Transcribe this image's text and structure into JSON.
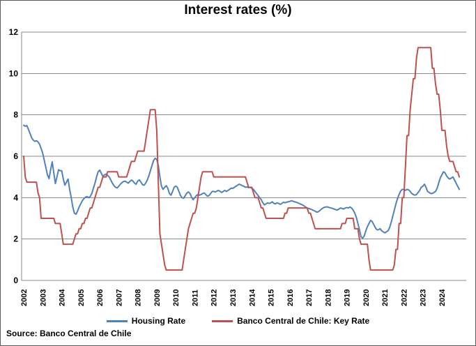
{
  "title": "Interest rates (%)",
  "source_note": "Source: Banco Central de Chile",
  "legend": {
    "items": [
      {
        "label": "Housing Rate",
        "color": "#4F81BD"
      },
      {
        "label": "Banco Central de Chile: Key Rate",
        "color": "#C0504D"
      }
    ]
  },
  "chart_data": {
    "type": "line",
    "title": "Interest rates (%)",
    "grid": "horizontal",
    "gridline_color": "#8a8a8a",
    "legend_position": "bottom",
    "x_axis": {
      "frequency": "monthly",
      "start_year": 2002,
      "end_year": 2024,
      "tick_labels": [
        "2002",
        "2003",
        "2004",
        "2005",
        "2006",
        "2007",
        "2008",
        "2009",
        "2010",
        "2011",
        "2012",
        "2013",
        "2014",
        "2015",
        "2016",
        "2017",
        "2018",
        "2019",
        "2020",
        "2021",
        "2022",
        "2023",
        "2024"
      ]
    },
    "y_axis": {
      "min": 0,
      "max": 12,
      "ticks": [
        0,
        2,
        4,
        6,
        8,
        10,
        12
      ]
    },
    "series": [
      {
        "name": "Housing Rate",
        "color": "#4F81BD",
        "values": [
          7.5,
          7.45,
          7.48,
          7.3,
          7.1,
          6.9,
          6.78,
          6.72,
          6.75,
          6.7,
          6.58,
          6.38,
          6.15,
          5.8,
          5.45,
          5.1,
          4.92,
          5.35,
          5.73,
          5.2,
          4.68,
          5.0,
          5.35,
          5.3,
          5.3,
          4.9,
          4.6,
          4.75,
          4.9,
          4.4,
          4.0,
          3.55,
          3.25,
          3.2,
          3.35,
          3.55,
          3.7,
          3.85,
          3.95,
          4.02,
          4.05,
          4.0,
          4.05,
          4.2,
          4.45,
          4.7,
          5.0,
          5.25,
          5.33,
          5.18,
          5.03,
          5.1,
          5.14,
          5.08,
          5.0,
          4.85,
          4.7,
          4.58,
          4.5,
          4.47,
          4.55,
          4.65,
          4.72,
          4.78,
          4.8,
          4.75,
          4.7,
          4.78,
          4.85,
          4.8,
          4.7,
          4.65,
          4.8,
          4.86,
          4.75,
          4.63,
          4.6,
          4.7,
          4.85,
          5.05,
          5.3,
          5.55,
          5.8,
          5.9,
          5.85,
          5.55,
          5.0,
          4.55,
          4.4,
          4.5,
          4.58,
          4.45,
          4.2,
          4.12,
          4.3,
          4.5,
          4.56,
          4.5,
          4.3,
          4.1,
          4.0,
          3.97,
          4.1,
          4.22,
          4.28,
          4.2,
          4.02,
          3.9,
          4.0,
          4.1,
          4.15,
          4.12,
          4.15,
          4.2,
          4.23,
          4.15,
          4.07,
          4.1,
          4.2,
          4.3,
          4.3,
          4.27,
          4.32,
          4.35,
          4.3,
          4.25,
          4.3,
          4.35,
          4.3,
          4.35,
          4.4,
          4.46,
          4.45,
          4.5,
          4.55,
          4.6,
          4.65,
          4.62,
          4.58,
          4.55,
          4.5,
          4.52,
          4.48,
          4.5,
          4.46,
          4.4,
          4.3,
          4.2,
          4.1,
          4.0,
          3.9,
          3.75,
          3.65,
          3.7,
          3.75,
          3.72,
          3.75,
          3.8,
          3.72,
          3.7,
          3.75,
          3.72,
          3.68,
          3.72,
          3.78,
          3.75,
          3.78,
          3.8,
          3.82,
          3.85,
          3.83,
          3.8,
          3.78,
          3.75,
          3.72,
          3.68,
          3.65,
          3.6,
          3.55,
          3.5,
          3.48,
          3.45,
          3.42,
          3.38,
          3.35,
          3.3,
          3.32,
          3.38,
          3.45,
          3.5,
          3.54,
          3.55,
          3.55,
          3.52,
          3.5,
          3.48,
          3.45,
          3.42,
          3.4,
          3.45,
          3.5,
          3.48,
          3.45,
          3.5,
          3.52,
          3.5,
          3.55,
          3.5,
          3.4,
          3.25,
          3.05,
          2.75,
          2.45,
          2.1,
          2.05,
          2.15,
          2.4,
          2.6,
          2.75,
          2.9,
          2.85,
          2.7,
          2.55,
          2.45,
          2.45,
          2.5,
          2.4,
          2.35,
          2.3,
          2.35,
          2.4,
          2.55,
          2.8,
          3.1,
          3.4,
          3.7,
          3.95,
          4.15,
          4.32,
          4.4,
          4.4,
          4.35,
          4.4,
          4.38,
          4.3,
          4.2,
          4.15,
          4.12,
          4.15,
          4.25,
          4.35,
          4.5,
          4.55,
          4.65,
          4.5,
          4.3,
          4.25,
          4.2,
          4.2,
          4.25,
          4.3,
          4.45,
          4.7,
          4.95,
          5.1,
          5.25,
          5.2,
          5.05,
          4.95,
          4.9,
          4.95,
          5.0,
          4.85,
          4.7,
          4.55,
          4.4
        ]
      },
      {
        "name": "Banco Central de Chile: Key Rate",
        "color": "#C0504D",
        "values": [
          6.0,
          5.0,
          4.75,
          4.75,
          4.75,
          4.75,
          4.75,
          4.75,
          4.75,
          4.25,
          4.0,
          3.0,
          3.0,
          3.0,
          3.0,
          3.0,
          3.0,
          3.0,
          3.0,
          3.0,
          2.75,
          2.75,
          2.75,
          2.75,
          2.25,
          1.75,
          1.75,
          1.75,
          1.75,
          1.75,
          1.75,
          1.75,
          2.0,
          2.25,
          2.25,
          2.5,
          2.5,
          2.75,
          2.75,
          3.0,
          3.0,
          3.25,
          3.5,
          3.5,
          3.75,
          4.0,
          4.25,
          4.5,
          4.5,
          4.75,
          5.0,
          5.0,
          5.0,
          5.25,
          5.25,
          5.25,
          5.25,
          5.25,
          5.25,
          5.25,
          5.0,
          5.0,
          5.0,
          5.0,
          5.0,
          5.0,
          5.25,
          5.5,
          5.75,
          5.75,
          5.75,
          6.0,
          6.25,
          6.25,
          6.25,
          6.25,
          6.25,
          6.75,
          7.25,
          7.75,
          8.25,
          8.25,
          8.25,
          8.25,
          7.25,
          4.75,
          2.25,
          1.75,
          1.25,
          0.75,
          0.5,
          0.5,
          0.5,
          0.5,
          0.5,
          0.5,
          0.5,
          0.5,
          0.5,
          0.5,
          0.5,
          1.0,
          1.5,
          2.0,
          2.5,
          2.75,
          3.0,
          3.25,
          3.25,
          3.5,
          4.0,
          4.5,
          5.0,
          5.25,
          5.25,
          5.25,
          5.25,
          5.25,
          5.25,
          5.25,
          5.0,
          5.0,
          5.0,
          5.0,
          5.0,
          5.0,
          5.0,
          5.0,
          5.0,
          5.0,
          5.0,
          5.0,
          5.0,
          5.0,
          5.0,
          5.0,
          5.0,
          5.0,
          5.0,
          5.0,
          5.0,
          4.75,
          4.5,
          4.5,
          4.5,
          4.25,
          4.0,
          4.0,
          4.0,
          3.75,
          3.5,
          3.5,
          3.25,
          3.0,
          3.0,
          3.0,
          3.0,
          3.0,
          3.0,
          3.0,
          3.0,
          3.0,
          3.0,
          3.0,
          3.0,
          3.25,
          3.25,
          3.5,
          3.5,
          3.5,
          3.5,
          3.5,
          3.5,
          3.5,
          3.5,
          3.5,
          3.5,
          3.5,
          3.5,
          3.5,
          3.25,
          3.25,
          3.0,
          2.75,
          2.5,
          2.5,
          2.5,
          2.5,
          2.5,
          2.5,
          2.5,
          2.5,
          2.5,
          2.5,
          2.5,
          2.5,
          2.5,
          2.5,
          2.5,
          2.5,
          2.5,
          2.75,
          2.75,
          2.75,
          3.0,
          3.0,
          3.0,
          3.0,
          3.0,
          2.5,
          2.5,
          2.5,
          2.0,
          1.75,
          1.75,
          1.75,
          1.75,
          1.75,
          1.0,
          0.5,
          0.5,
          0.5,
          0.5,
          0.5,
          0.5,
          0.5,
          0.5,
          0.5,
          0.5,
          0.5,
          0.5,
          0.5,
          0.5,
          0.5,
          0.75,
          1.5,
          1.5,
          2.75,
          2.75,
          4.0,
          4.0,
          5.5,
          7.0,
          7.0,
          8.25,
          9.0,
          9.75,
          9.75,
          10.75,
          11.25,
          11.25,
          11.25,
          11.25,
          11.25,
          11.25,
          11.25,
          11.25,
          11.25,
          10.25,
          10.25,
          9.5,
          9.0,
          9.0,
          8.25,
          7.25,
          7.25,
          7.25,
          6.5,
          6.0,
          5.75,
          5.75,
          5.75,
          5.5,
          5.25,
          5.25,
          5.0
        ]
      }
    ]
  }
}
